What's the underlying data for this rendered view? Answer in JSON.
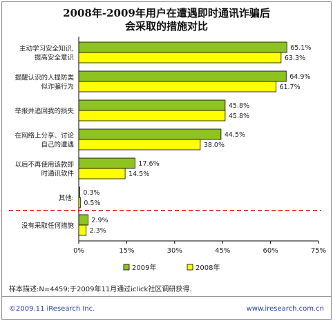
{
  "chart_data": {
    "type": "bar",
    "orientation": "horizontal",
    "title_lines": [
      "2008年-2009年用户在遭遇即时通讯诈骗后",
      "会采取的措施对比"
    ],
    "categories": [
      [
        "主动学习安全知识,",
        "提高安全意识"
      ],
      [
        "提醒认识的人提防类",
        "似诈骗行为"
      ],
      [
        "举报并追回我的损失"
      ],
      [
        "在网络上分享、讨论",
        "自己的遭遇"
      ],
      [
        "以后不再使用该款即",
        "时通讯软件"
      ],
      [
        "其他:"
      ],
      [
        "没有采取任何措施"
      ]
    ],
    "series": [
      {
        "name": "2009年",
        "color": "#8fc31f",
        "values": [
          65.1,
          64.9,
          45.8,
          44.5,
          17.6,
          0.3,
          2.9
        ]
      },
      {
        "name": "2008年",
        "color": "#ffff00",
        "values": [
          63.3,
          61.7,
          45.8,
          38.0,
          14.5,
          0.5,
          2.3
        ]
      }
    ],
    "x_ticks": [
      "0%",
      "15%",
      "30%",
      "45%",
      "60%",
      "75%"
    ],
    "xlim": [
      0,
      75
    ],
    "legend_position": "bottom",
    "grid": false
  },
  "footnote": "样本描述:N=4459;于2009年11月通过iclick社区调研获得.",
  "copyright": "©2009.11 iResearch Inc.",
  "website": "www.iresearch.com.cn"
}
